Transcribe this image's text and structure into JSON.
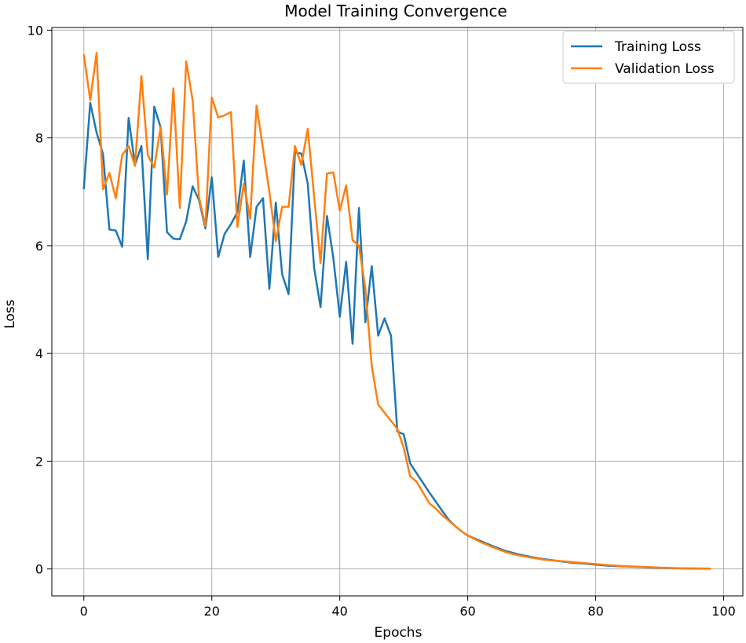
{
  "chart_data": {
    "type": "line",
    "title": "Model Training Convergence",
    "xlabel": "Epochs",
    "ylabel": "Loss",
    "xlim": [
      -5,
      103
    ],
    "ylim": [
      -0.5,
      10.05
    ],
    "xticks": [
      0,
      20,
      40,
      60,
      80,
      100
    ],
    "yticks": [
      0,
      2,
      4,
      6,
      8,
      10
    ],
    "grid": true,
    "legend_position": "top-right",
    "series": [
      {
        "name": "Training Loss",
        "color": "#1f77b4",
        "x": [
          0,
          1,
          2,
          3,
          4,
          5,
          6,
          7,
          8,
          9,
          10,
          11,
          12,
          13,
          14,
          15,
          16,
          17,
          18,
          19,
          20,
          21,
          22,
          23,
          24,
          25,
          26,
          27,
          28,
          29,
          30,
          31,
          32,
          33,
          34,
          35,
          36,
          37,
          38,
          39,
          40,
          41,
          42,
          43,
          44,
          45,
          46,
          47,
          48,
          49,
          50,
          51,
          52,
          53,
          54,
          55,
          56,
          57,
          58,
          59,
          60,
          62,
          64,
          66,
          68,
          70,
          72,
          74,
          76,
          78,
          80,
          82,
          84,
          86,
          88,
          90,
          92,
          94,
          96,
          98
        ],
        "y": [
          7.05,
          8.65,
          8.1,
          7.7,
          6.3,
          6.28,
          5.98,
          8.37,
          7.5,
          7.85,
          5.75,
          8.58,
          8.2,
          6.25,
          6.13,
          6.12,
          6.45,
          7.1,
          6.85,
          6.32,
          7.27,
          5.79,
          6.22,
          6.4,
          6.62,
          7.58,
          5.79,
          6.72,
          6.88,
          5.2,
          6.8,
          5.47,
          5.1,
          7.73,
          7.71,
          7.15,
          5.58,
          4.86,
          6.55,
          5.77,
          4.68,
          5.7,
          4.18,
          6.7,
          4.58,
          5.62,
          4.33,
          4.65,
          4.33,
          2.55,
          2.5,
          1.96,
          1.78,
          1.6,
          1.42,
          1.25,
          1.08,
          0.92,
          0.8,
          0.7,
          0.62,
          0.52,
          0.42,
          0.33,
          0.27,
          0.22,
          0.18,
          0.15,
          0.12,
          0.1,
          0.08,
          0.06,
          0.05,
          0.04,
          0.03,
          0.02,
          0.015,
          0.01,
          0.008,
          0.005
        ]
      },
      {
        "name": "Validation Loss",
        "color": "#ff7f0e",
        "x": [
          0,
          1,
          2,
          3,
          4,
          5,
          6,
          7,
          8,
          9,
          10,
          11,
          12,
          13,
          14,
          15,
          16,
          17,
          18,
          19,
          20,
          21,
          22,
          23,
          24,
          25,
          26,
          27,
          28,
          29,
          30,
          31,
          32,
          33,
          34,
          35,
          36,
          37,
          38,
          39,
          40,
          41,
          42,
          43,
          44,
          45,
          46,
          47,
          48,
          49,
          50,
          51,
          52,
          53,
          54,
          55,
          56,
          57,
          58,
          59,
          60,
          62,
          64,
          66,
          68,
          70,
          72,
          74,
          76,
          78,
          80,
          82,
          84,
          86,
          88,
          90,
          92,
          94,
          96,
          98
        ],
        "y": [
          9.55,
          8.7,
          9.58,
          7.05,
          7.35,
          6.88,
          7.68,
          7.85,
          7.48,
          9.15,
          7.68,
          7.45,
          8.2,
          6.95,
          8.92,
          6.7,
          9.42,
          8.7,
          6.9,
          6.36,
          8.75,
          8.38,
          8.42,
          8.48,
          6.35,
          7.15,
          6.5,
          8.6,
          7.8,
          7.0,
          6.08,
          6.72,
          6.72,
          7.85,
          7.5,
          8.17,
          6.9,
          5.68,
          7.34,
          7.36,
          6.65,
          7.12,
          6.1,
          6.0,
          5.2,
          3.77,
          3.05,
          2.9,
          2.75,
          2.6,
          2.25,
          1.72,
          1.62,
          1.42,
          1.22,
          1.12,
          1.0,
          0.9,
          0.8,
          0.7,
          0.62,
          0.5,
          0.4,
          0.31,
          0.25,
          0.21,
          0.17,
          0.15,
          0.13,
          0.11,
          0.09,
          0.07,
          0.055,
          0.045,
          0.035,
          0.025,
          0.018,
          0.012,
          0.008,
          0.005
        ]
      }
    ]
  }
}
